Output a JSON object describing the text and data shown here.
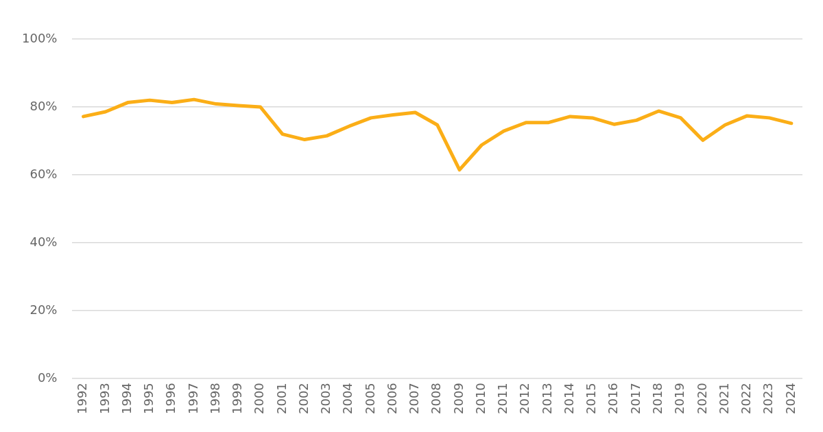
{
  "chart_data": {
    "type": "line",
    "categories": [
      "1992",
      "1993",
      "1994",
      "1995",
      "1996",
      "1997",
      "1998",
      "1999",
      "2000",
      "2001",
      "2002",
      "2003",
      "2004",
      "2005",
      "2006",
      "2007",
      "2008",
      "2009",
      "2010",
      "2011",
      "2012",
      "2013",
      "2014",
      "2015",
      "2016",
      "2017",
      "2018",
      "2019",
      "2020",
      "2021",
      "2022",
      "2023",
      "2024"
    ],
    "series": [
      {
        "color": "#fbae17",
        "values": [
          77.2,
          78.6,
          81.3,
          82,
          81.3,
          82.2,
          80.9,
          80.4,
          80,
          72,
          70.4,
          71.5,
          74.3,
          76.8,
          77.7,
          78.4,
          74.7,
          61.5,
          68.8,
          72.9,
          75.4,
          75.4,
          77.2,
          76.8,
          74.9,
          76.1,
          78.8,
          76.8,
          70.2,
          74.7,
          77.4,
          76.8,
          75.2
        ]
      }
    ],
    "ylim": [
      0,
      100
    ],
    "yticks": [
      {
        "value": 0,
        "label": "0%"
      },
      {
        "value": 20,
        "label": "20%"
      },
      {
        "value": 40,
        "label": "40%"
      },
      {
        "value": 60,
        "label": "60%"
      },
      {
        "value": 80,
        "label": "80%"
      },
      {
        "value": 100,
        "label": "100%"
      }
    ],
    "grid": "y",
    "legend": false,
    "marker": "none",
    "line_style": "solid"
  }
}
